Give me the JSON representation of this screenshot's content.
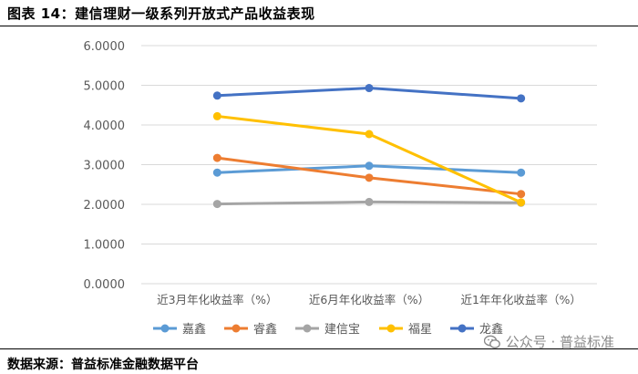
{
  "header": {
    "title": "图表 14：建信理财一级系列开放式产品收益表现"
  },
  "footer": {
    "source": "数据来源：普益标准金融数据平台"
  },
  "watermark": {
    "text": "公众号 · 普益标准",
    "icon": "wechat-icon"
  },
  "chart_data": {
    "type": "line",
    "title": "",
    "xlabel": "",
    "ylabel": "",
    "categories": [
      "近3月年化收益率（%）",
      "近6月年化收益率（%）",
      "近1年年化收益率（%）"
    ],
    "ylim": [
      0,
      6
    ],
    "yticks": [
      "0.0000",
      "1.0000",
      "2.0000",
      "3.0000",
      "4.0000",
      "5.0000",
      "6.0000"
    ],
    "grid": true,
    "legend_position": "bottom",
    "series": [
      {
        "name": "嘉鑫",
        "color": "#5b9bd5",
        "values": [
          2.8,
          2.97,
          2.8
        ]
      },
      {
        "name": "睿鑫",
        "color": "#ed7d31",
        "values": [
          3.17,
          2.67,
          2.26
        ]
      },
      {
        "name": "建信宝",
        "color": "#a5a5a5",
        "values": [
          2.01,
          2.06,
          2.04
        ]
      },
      {
        "name": "福星",
        "color": "#ffc000",
        "values": [
          4.22,
          3.77,
          2.05
        ]
      },
      {
        "name": "龙鑫",
        "color": "#4472c4",
        "values": [
          4.74,
          4.93,
          4.67
        ]
      }
    ]
  }
}
